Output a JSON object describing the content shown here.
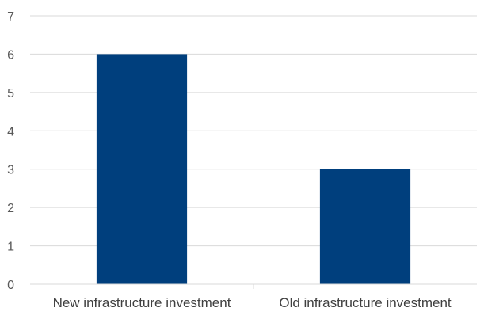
{
  "chart_data": {
    "type": "bar",
    "title": "",
    "xlabel": "",
    "ylabel": "",
    "categories": [
      "New infrastructure investment",
      "Old infrastructure investment"
    ],
    "values": [
      6,
      3
    ],
    "ylim": [
      0,
      7
    ],
    "yticks": [
      "0",
      "1",
      "2",
      "3",
      "4",
      "5",
      "6",
      "7"
    ],
    "grid": true,
    "legend": "none",
    "colors": {
      "bar": "#003F7D",
      "grid": "#D9D9D9",
      "axis": "#D9D9D9"
    }
  }
}
